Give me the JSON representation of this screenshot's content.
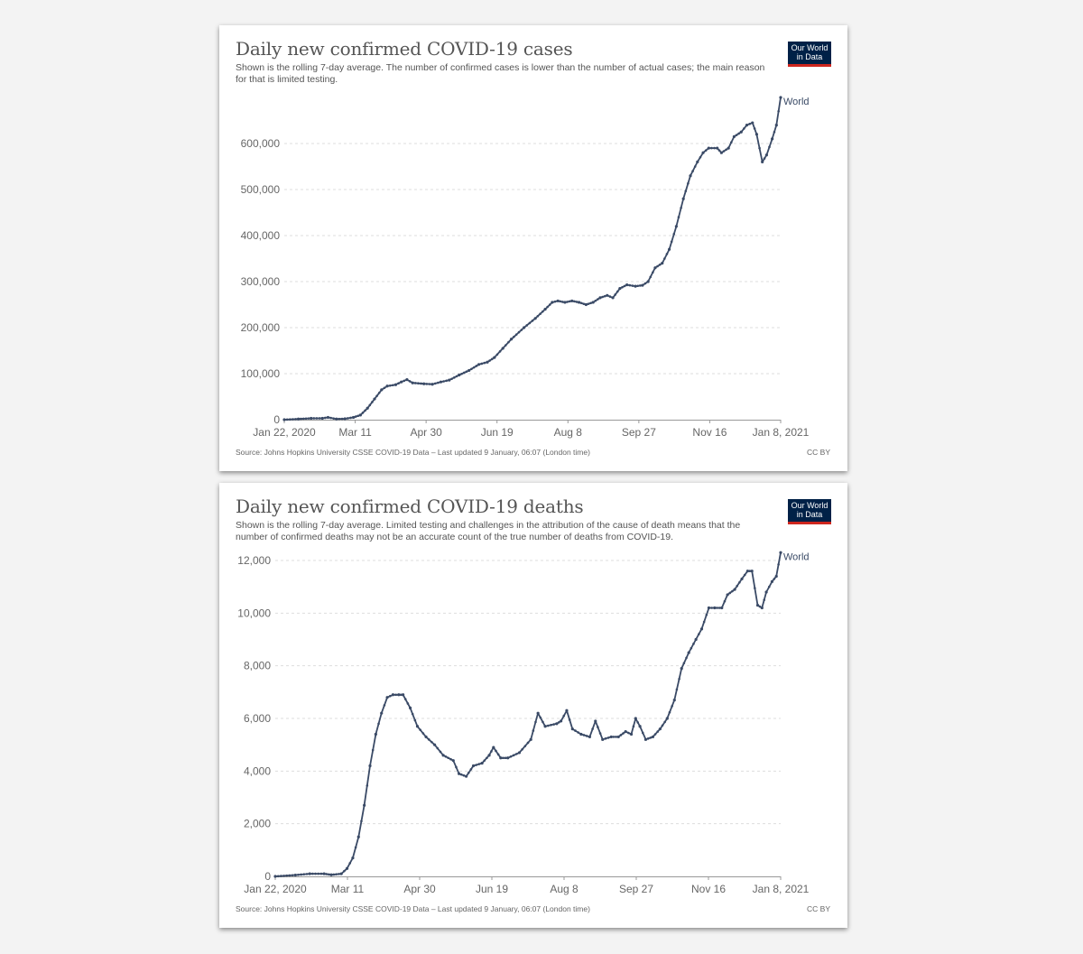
{
  "charts": [
    {
      "title": "Daily new confirmed COVID-19 cases",
      "subtitle": "Shown is the rolling 7-day average. The number of confirmed cases is lower than the number of actual cases; the main reason for that is limited testing.",
      "logo_line1": "Our World",
      "logo_line2": "in Data",
      "source": "Source: Johns Hopkins University CSSE COVID-19 Data – Last updated 9 January, 06:07 (London time)",
      "license": "CC BY"
    },
    {
      "title": "Daily new confirmed COVID-19 deaths",
      "subtitle": "Shown is the rolling 7-day average. Limited testing and challenges in the attribution of the cause of death means that the number of confirmed deaths may not be an accurate count of the true number of deaths from COVID-19.",
      "logo_line1": "Our World",
      "logo_line2": "in Data",
      "source": "Source: Johns Hopkins University CSSE COVID-19 Data – Last updated 9 January, 06:07 (London time)",
      "license": "CC BY"
    }
  ],
  "colors": {
    "line": "#3a4a66",
    "grid": "#dddddd",
    "axis": "#666666",
    "logo_bg": "#002147",
    "logo_accent": "#ce261e"
  },
  "chart_data": [
    {
      "type": "line",
      "title": "Daily new confirmed COVID-19 cases",
      "x_tick_labels": [
        "Jan 22, 2020",
        "Mar 11",
        "Apr 30",
        "Jun 19",
        "Aug 8",
        "Sep 27",
        "Nov 16",
        "Jan 8, 2021"
      ],
      "y_tick_labels": [
        "0",
        "100,000",
        "200,000",
        "300,000",
        "400,000",
        "500,000",
        "600,000"
      ],
      "ylim": [
        0,
        700000
      ],
      "xlim": [
        "2020-01-22",
        "2021-01-08"
      ],
      "grid": true,
      "series": [
        {
          "name": "World",
          "points": [
            [
              "2020-01-22",
              0
            ],
            [
              "2020-02-01",
              1500
            ],
            [
              "2020-02-10",
              3000
            ],
            [
              "2020-02-18",
              3000
            ],
            [
              "2020-02-22",
              5000
            ],
            [
              "2020-02-28",
              1500
            ],
            [
              "2020-03-05",
              2000
            ],
            [
              "2020-03-11",
              5000
            ],
            [
              "2020-03-16",
              10000
            ],
            [
              "2020-03-21",
              25000
            ],
            [
              "2020-03-26",
              45000
            ],
            [
              "2020-03-31",
              65000
            ],
            [
              "2020-04-04",
              73000
            ],
            [
              "2020-04-10",
              76000
            ],
            [
              "2020-04-14",
              82000
            ],
            [
              "2020-04-18",
              87000
            ],
            [
              "2020-04-22",
              80000
            ],
            [
              "2020-04-30",
              78000
            ],
            [
              "2020-05-06",
              77000
            ],
            [
              "2020-05-12",
              82000
            ],
            [
              "2020-05-18",
              86000
            ],
            [
              "2020-05-25",
              97000
            ],
            [
              "2020-06-01",
              107000
            ],
            [
              "2020-06-08",
              120000
            ],
            [
              "2020-06-14",
              125000
            ],
            [
              "2020-06-19",
              135000
            ],
            [
              "2020-06-25",
              155000
            ],
            [
              "2020-07-01",
              175000
            ],
            [
              "2020-07-10",
              200000
            ],
            [
              "2020-07-18",
              220000
            ],
            [
              "2020-07-25",
              240000
            ],
            [
              "2020-07-30",
              255000
            ],
            [
              "2020-08-03",
              258000
            ],
            [
              "2020-08-08",
              255000
            ],
            [
              "2020-08-13",
              258000
            ],
            [
              "2020-08-18",
              255000
            ],
            [
              "2020-08-23",
              250000
            ],
            [
              "2020-08-28",
              255000
            ],
            [
              "2020-09-02",
              265000
            ],
            [
              "2020-09-07",
              270000
            ],
            [
              "2020-09-11",
              265000
            ],
            [
              "2020-09-16",
              285000
            ],
            [
              "2020-09-21",
              293000
            ],
            [
              "2020-09-27",
              290000
            ],
            [
              "2020-10-02",
              292000
            ],
            [
              "2020-10-06",
              300000
            ],
            [
              "2020-10-11",
              330000
            ],
            [
              "2020-10-16",
              340000
            ],
            [
              "2020-10-21",
              370000
            ],
            [
              "2020-10-26",
              420000
            ],
            [
              "2020-10-31",
              480000
            ],
            [
              "2020-11-05",
              530000
            ],
            [
              "2020-11-10",
              560000
            ],
            [
              "2020-11-14",
              580000
            ],
            [
              "2020-11-18",
              590000
            ],
            [
              "2020-11-24",
              590000
            ],
            [
              "2020-11-27",
              580000
            ],
            [
              "2020-12-02",
              590000
            ],
            [
              "2020-12-06",
              615000
            ],
            [
              "2020-12-11",
              625000
            ],
            [
              "2020-12-15",
              640000
            ],
            [
              "2020-12-19",
              645000
            ],
            [
              "2020-12-22",
              620000
            ],
            [
              "2020-12-26",
              560000
            ],
            [
              "2020-12-29",
              575000
            ],
            [
              "2021-01-02",
              610000
            ],
            [
              "2021-01-05",
              640000
            ],
            [
              "2021-01-08",
              700000
            ]
          ]
        }
      ]
    },
    {
      "type": "line",
      "title": "Daily new confirmed COVID-19 deaths",
      "x_tick_labels": [
        "Jan 22, 2020",
        "Mar 11",
        "Apr 30",
        "Jun 19",
        "Aug 8",
        "Sep 27",
        "Nov 16",
        "Jan 8, 2021"
      ],
      "y_tick_labels": [
        "0",
        "2,000",
        "4,000",
        "6,000",
        "8,000",
        "10,000",
        "12,000"
      ],
      "ylim": [
        0,
        12000
      ],
      "xlim": [
        "2020-01-22",
        "2021-01-08"
      ],
      "grid": true,
      "series": [
        {
          "name": "World",
          "points": [
            [
              "2020-01-22",
              0
            ],
            [
              "2020-02-05",
              50
            ],
            [
              "2020-02-15",
              100
            ],
            [
              "2020-02-25",
              100
            ],
            [
              "2020-03-01",
              60
            ],
            [
              "2020-03-08",
              100
            ],
            [
              "2020-03-12",
              300
            ],
            [
              "2020-03-16",
              700
            ],
            [
              "2020-03-20",
              1500
            ],
            [
              "2020-03-24",
              2700
            ],
            [
              "2020-03-28",
              4200
            ],
            [
              "2020-04-01",
              5400
            ],
            [
              "2020-04-05",
              6200
            ],
            [
              "2020-04-09",
              6800
            ],
            [
              "2020-04-13",
              6900
            ],
            [
              "2020-04-17",
              6900
            ],
            [
              "2020-04-20",
              6900
            ],
            [
              "2020-04-25",
              6400
            ],
            [
              "2020-04-30",
              5700
            ],
            [
              "2020-05-06",
              5300
            ],
            [
              "2020-05-12",
              5000
            ],
            [
              "2020-05-18",
              4600
            ],
            [
              "2020-05-25",
              4400
            ],
            [
              "2020-05-29",
              3900
            ],
            [
              "2020-06-03",
              3800
            ],
            [
              "2020-06-08",
              4200
            ],
            [
              "2020-06-14",
              4300
            ],
            [
              "2020-06-19",
              4600
            ],
            [
              "2020-06-22",
              4900
            ],
            [
              "2020-06-27",
              4500
            ],
            [
              "2020-07-02",
              4500
            ],
            [
              "2020-07-10",
              4700
            ],
            [
              "2020-07-18",
              5200
            ],
            [
              "2020-07-23",
              6200
            ],
            [
              "2020-07-28",
              5700
            ],
            [
              "2020-08-05",
              5800
            ],
            [
              "2020-08-08",
              5900
            ],
            [
              "2020-08-12",
              6300
            ],
            [
              "2020-08-16",
              5600
            ],
            [
              "2020-08-22",
              5400
            ],
            [
              "2020-08-28",
              5300
            ],
            [
              "2020-09-01",
              5900
            ],
            [
              "2020-09-06",
              5200
            ],
            [
              "2020-09-12",
              5300
            ],
            [
              "2020-09-17",
              5300
            ],
            [
              "2020-09-22",
              5500
            ],
            [
              "2020-09-26",
              5400
            ],
            [
              "2020-09-29",
              6000
            ],
            [
              "2020-10-02",
              5700
            ],
            [
              "2020-10-06",
              5200
            ],
            [
              "2020-10-11",
              5300
            ],
            [
              "2020-10-16",
              5600
            ],
            [
              "2020-10-21",
              6000
            ],
            [
              "2020-10-26",
              6700
            ],
            [
              "2020-10-31",
              7900
            ],
            [
              "2020-11-05",
              8500
            ],
            [
              "2020-11-10",
              9000
            ],
            [
              "2020-11-14",
              9400
            ],
            [
              "2020-11-19",
              10200
            ],
            [
              "2020-11-23",
              10200
            ],
            [
              "2020-11-28",
              10200
            ],
            [
              "2020-12-02",
              10700
            ],
            [
              "2020-12-07",
              10900
            ],
            [
              "2020-12-12",
              11300
            ],
            [
              "2020-12-16",
              11600
            ],
            [
              "2020-12-19",
              11600
            ],
            [
              "2020-12-23",
              10300
            ],
            [
              "2020-12-26",
              10200
            ],
            [
              "2020-12-29",
              10800
            ],
            [
              "2021-01-02",
              11200
            ],
            [
              "2021-01-05",
              11400
            ],
            [
              "2021-01-08",
              12300
            ]
          ]
        }
      ]
    }
  ]
}
